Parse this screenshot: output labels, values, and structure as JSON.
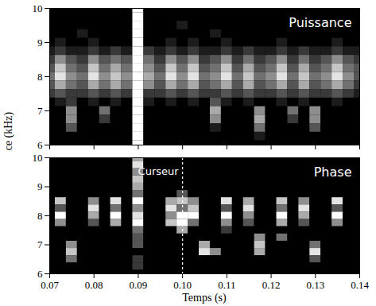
{
  "chart_data": [
    {
      "type": "heatmap",
      "title": "Puissance",
      "ylabel": "Fréquence (kHz)",
      "color": "gray",
      "tick_labels": "y",
      "x": [
        0.07,
        0.0725,
        0.075,
        0.0775,
        0.08,
        0.0825,
        0.085,
        0.0875,
        0.09,
        0.0925,
        0.095,
        0.0975,
        0.1,
        0.1025,
        0.105,
        0.1075,
        0.11,
        0.1125,
        0.115,
        0.1175,
        0.12,
        0.1225,
        0.125,
        0.1275,
        0.13,
        0.1325,
        0.135,
        0.1375,
        0.14
      ],
      "y": [
        10,
        9.75,
        9.5,
        9.25,
        9,
        8.75,
        8.5,
        8.25,
        8,
        7.75,
        7.5,
        7.25,
        7,
        6.75,
        6.5,
        6.25,
        6
      ],
      "values": [
        [
          0,
          0,
          0,
          0,
          0,
          0,
          0,
          0,
          9,
          0,
          0,
          0,
          0,
          0,
          0,
          0,
          0,
          0,
          0,
          0,
          0,
          0,
          0,
          0,
          0,
          0,
          0,
          0,
          0
        ],
        [
          0,
          0,
          0,
          0,
          0,
          0,
          0,
          0,
          9,
          0,
          0,
          0,
          0,
          0,
          0,
          0,
          0,
          0,
          0,
          0,
          0,
          0,
          0,
          0,
          0,
          0,
          0,
          0,
          0
        ],
        [
          0,
          0,
          0,
          0,
          0,
          0,
          0,
          0,
          9,
          0,
          0,
          0,
          1,
          0,
          0,
          0,
          0,
          0,
          0,
          0,
          0,
          0,
          0,
          0,
          0,
          0,
          0,
          0,
          0
        ],
        [
          0,
          0,
          0,
          1,
          0,
          0,
          0,
          0,
          9,
          0,
          0,
          0,
          0,
          0,
          0,
          1,
          0,
          0,
          0,
          0,
          0,
          0,
          0,
          0,
          0,
          0,
          0,
          0,
          0
        ],
        [
          0,
          1,
          0,
          0,
          1,
          0,
          0,
          0,
          9,
          0,
          0,
          1,
          0,
          1,
          0,
          0,
          1,
          0,
          0,
          0,
          0,
          1,
          0,
          0,
          0,
          0,
          1,
          0,
          0
        ],
        [
          1,
          2,
          1,
          1,
          2,
          1,
          2,
          1,
          9,
          2,
          1,
          2,
          1,
          2,
          1,
          1,
          2,
          1,
          2,
          1,
          1,
          2,
          1,
          2,
          1,
          1,
          2,
          1,
          1
        ],
        [
          2,
          5,
          3,
          2,
          5,
          3,
          4,
          3,
          9,
          4,
          2,
          5,
          3,
          5,
          2,
          3,
          5,
          2,
          4,
          2,
          3,
          5,
          2,
          4,
          2,
          3,
          5,
          3,
          2
        ],
        [
          3,
          7,
          4,
          3,
          7,
          4,
          6,
          4,
          9,
          5,
          3,
          7,
          4,
          7,
          3,
          4,
          7,
          3,
          6,
          3,
          4,
          7,
          3,
          6,
          3,
          4,
          7,
          4,
          3
        ],
        [
          4,
          8,
          5,
          4,
          8,
          5,
          7,
          5,
          9,
          6,
          4,
          8,
          5,
          8,
          4,
          5,
          8,
          4,
          7,
          4,
          5,
          8,
          4,
          7,
          4,
          5,
          8,
          5,
          3
        ],
        [
          3,
          6,
          4,
          3,
          6,
          4,
          6,
          4,
          9,
          5,
          3,
          6,
          4,
          6,
          3,
          4,
          6,
          3,
          6,
          3,
          4,
          6,
          3,
          6,
          3,
          4,
          6,
          4,
          2
        ],
        [
          2,
          3,
          2,
          2,
          3,
          2,
          3,
          2,
          9,
          2,
          2,
          3,
          2,
          3,
          2,
          2,
          3,
          2,
          3,
          2,
          2,
          3,
          2,
          3,
          2,
          2,
          3,
          2,
          1
        ],
        [
          0,
          1,
          2,
          0,
          1,
          0,
          1,
          0,
          9,
          1,
          0,
          1,
          0,
          1,
          0,
          3,
          1,
          0,
          1,
          0,
          0,
          1,
          0,
          1,
          0,
          0,
          1,
          0,
          0
        ],
        [
          0,
          0,
          5,
          0,
          0,
          4,
          0,
          0,
          9,
          0,
          0,
          0,
          0,
          0,
          0,
          6,
          0,
          0,
          0,
          5,
          0,
          0,
          4,
          0,
          5,
          0,
          0,
          0,
          0
        ],
        [
          0,
          0,
          5,
          0,
          0,
          2,
          0,
          0,
          9,
          0,
          0,
          0,
          0,
          0,
          0,
          5,
          0,
          0,
          0,
          6,
          0,
          0,
          2,
          0,
          5,
          0,
          0,
          0,
          0
        ],
        [
          0,
          0,
          3,
          0,
          0,
          0,
          0,
          0,
          9,
          0,
          0,
          0,
          0,
          0,
          0,
          1,
          0,
          0,
          0,
          4,
          0,
          0,
          0,
          0,
          3,
          0,
          0,
          0,
          0
        ],
        [
          0,
          0,
          0,
          0,
          0,
          0,
          0,
          0,
          9,
          0,
          0,
          0,
          0,
          0,
          0,
          0,
          0,
          0,
          0,
          1,
          0,
          0,
          0,
          0,
          0,
          0,
          0,
          0,
          0
        ],
        [
          0,
          0,
          0,
          0,
          0,
          0,
          0,
          0,
          9,
          0,
          0,
          0,
          0,
          0,
          0,
          0,
          0,
          0,
          0,
          0,
          0,
          0,
          0,
          0,
          0,
          0,
          0,
          0,
          0
        ]
      ],
      "xlim": [
        0.07,
        0.14
      ],
      "ylim": [
        6,
        10
      ],
      "xticks": [
        0.07,
        0.08,
        0.09,
        {
          "value": 0.1,
          "label": "0.10"
        },
        0.11,
        0.12,
        0.13,
        0.14
      ],
      "yticks": [
        6,
        7,
        8,
        9,
        10
      ]
    },
    {
      "type": "heatmap",
      "title": "Phase",
      "xlabel": "Temps (s)",
      "color": "gray",
      "annotations": [
        {
          "text": "Curseur",
          "x": 0.1,
          "line_style": "dashed"
        }
      ],
      "x": [
        0.07,
        0.0725,
        0.075,
        0.0775,
        0.08,
        0.0825,
        0.085,
        0.0875,
        0.09,
        0.0925,
        0.095,
        0.0975,
        0.1,
        0.1025,
        0.105,
        0.1075,
        0.11,
        0.1125,
        0.115,
        0.1175,
        0.12,
        0.1225,
        0.125,
        0.1275,
        0.13,
        0.1325,
        0.135,
        0.1375,
        0.14
      ],
      "y": [
        10,
        9.75,
        9.5,
        9.25,
        9,
        8.75,
        8.5,
        8.25,
        8,
        7.75,
        7.5,
        7.25,
        7,
        6.75,
        6.5,
        6.25,
        6
      ],
      "values": [
        [
          0,
          0,
          0,
          0,
          0,
          0,
          0,
          0,
          6,
          0,
          0,
          0,
          0,
          0,
          0,
          0,
          0,
          0,
          0,
          0,
          0,
          0,
          0,
          0,
          0,
          0,
          0,
          0,
          0
        ],
        [
          0,
          0,
          0,
          0,
          0,
          0,
          0,
          0,
          8,
          0,
          0,
          0,
          0,
          0,
          0,
          0,
          0,
          0,
          0,
          0,
          0,
          0,
          0,
          0,
          0,
          0,
          0,
          0,
          0
        ],
        [
          0,
          0,
          0,
          0,
          0,
          0,
          0,
          0,
          5,
          0,
          0,
          0,
          0,
          0,
          0,
          0,
          0,
          0,
          0,
          0,
          0,
          0,
          0,
          0,
          0,
          0,
          0,
          0,
          0
        ],
        [
          0,
          0,
          0,
          0,
          0,
          0,
          0,
          0,
          7,
          0,
          0,
          0,
          0,
          0,
          0,
          0,
          0,
          0,
          0,
          0,
          0,
          0,
          0,
          0,
          0,
          0,
          0,
          0,
          0
        ],
        [
          0,
          0,
          0,
          0,
          0,
          0,
          0,
          0,
          6,
          0,
          0,
          0,
          0,
          0,
          0,
          0,
          0,
          0,
          0,
          0,
          0,
          0,
          0,
          0,
          0,
          0,
          0,
          0,
          0
        ],
        [
          0,
          0,
          0,
          0,
          0,
          0,
          0,
          0,
          4,
          0,
          0,
          0,
          3,
          0,
          0,
          0,
          0,
          0,
          0,
          0,
          0,
          0,
          0,
          0,
          0,
          0,
          0,
          0,
          0
        ],
        [
          0,
          7,
          0,
          0,
          5,
          0,
          8,
          0,
          9,
          0,
          0,
          6,
          7,
          5,
          0,
          0,
          8,
          0,
          6,
          0,
          0,
          7,
          0,
          5,
          0,
          0,
          8,
          0,
          0
        ],
        [
          0,
          3,
          0,
          0,
          8,
          0,
          4,
          0,
          5,
          0,
          0,
          8,
          4,
          7,
          0,
          0,
          3,
          0,
          8,
          0,
          0,
          4,
          0,
          8,
          0,
          0,
          3,
          0,
          0
        ],
        [
          0,
          9,
          0,
          0,
          6,
          0,
          9,
          0,
          8,
          0,
          0,
          5,
          9,
          9,
          0,
          0,
          9,
          0,
          5,
          0,
          0,
          9,
          0,
          6,
          0,
          0,
          9,
          0,
          0
        ],
        [
          0,
          5,
          0,
          0,
          3,
          0,
          6,
          0,
          9,
          0,
          0,
          7,
          9,
          4,
          0,
          0,
          5,
          0,
          3,
          0,
          0,
          6,
          0,
          3,
          0,
          0,
          5,
          0,
          0
        ],
        [
          0,
          0,
          0,
          0,
          0,
          0,
          0,
          0,
          4,
          0,
          0,
          0,
          6,
          0,
          0,
          0,
          2,
          0,
          0,
          0,
          0,
          0,
          0,
          0,
          0,
          0,
          0,
          0,
          0
        ],
        [
          0,
          0,
          0,
          0,
          0,
          0,
          0,
          0,
          3,
          0,
          0,
          0,
          0,
          0,
          0,
          0,
          0,
          0,
          0,
          5,
          0,
          4,
          0,
          0,
          0,
          0,
          0,
          0,
          0
        ],
        [
          0,
          0,
          5,
          0,
          0,
          0,
          0,
          0,
          3,
          0,
          0,
          0,
          0,
          0,
          6,
          0,
          0,
          0,
          0,
          7,
          0,
          0,
          0,
          0,
          4,
          0,
          0,
          0,
          0
        ],
        [
          0,
          0,
          7,
          0,
          0,
          0,
          0,
          0,
          0,
          0,
          0,
          0,
          0,
          0,
          8,
          5,
          0,
          0,
          0,
          6,
          0,
          0,
          0,
          0,
          8,
          0,
          0,
          0,
          0
        ],
        [
          0,
          0,
          4,
          0,
          0,
          0,
          0,
          0,
          2,
          0,
          0,
          0,
          0,
          0,
          0,
          0,
          0,
          0,
          0,
          0,
          0,
          0,
          0,
          0,
          3,
          0,
          0,
          0,
          0
        ],
        [
          0,
          0,
          0,
          0,
          0,
          0,
          0,
          0,
          2,
          0,
          0,
          0,
          0,
          0,
          0,
          0,
          0,
          0,
          0,
          0,
          0,
          0,
          0,
          0,
          0,
          0,
          0,
          0,
          0
        ],
        [
          0,
          0,
          0,
          0,
          0,
          0,
          0,
          0,
          0,
          0,
          0,
          0,
          0,
          0,
          0,
          0,
          0,
          0,
          0,
          0,
          0,
          0,
          0,
          0,
          0,
          0,
          0,
          0,
          0
        ]
      ],
      "xlim": [
        0.07,
        0.14
      ],
      "ylim": [
        6,
        10
      ],
      "xticks": [
        0.07,
        0.08,
        0.09,
        {
          "value": 0.1,
          "label": "0.10"
        },
        0.11,
        0.12,
        0.13,
        0.14
      ],
      "yticks": [
        6,
        7,
        8,
        9,
        10
      ]
    }
  ]
}
